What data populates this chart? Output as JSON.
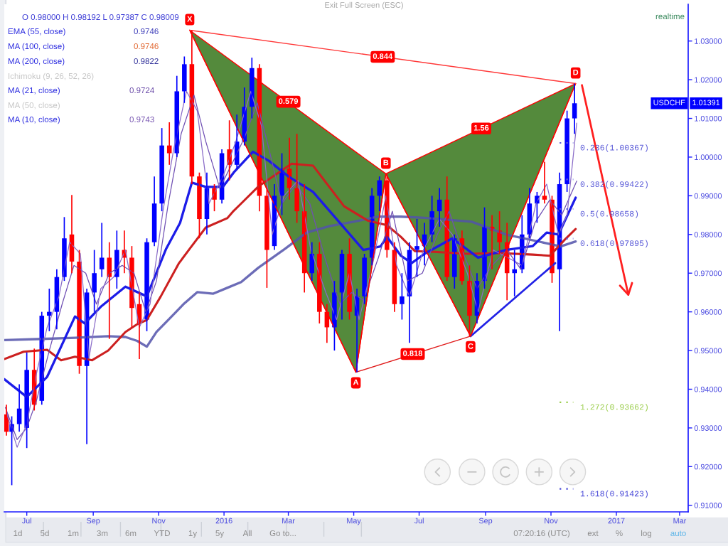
{
  "chart_data": {
    "type": "candlestick",
    "xlim": [
      "2015-06-10",
      "2017-03-09"
    ],
    "ylim": [
      0.9083,
      1.0395
    ],
    "xticks": [
      {
        "value": "2015-07-01",
        "label": "Jul"
      },
      {
        "value": "2015-09-01",
        "label": "Sep"
      },
      {
        "value": "2015-11-01",
        "label": "Nov"
      },
      {
        "value": "2016-01-01",
        "label": "2016"
      },
      {
        "value": "2016-03-01",
        "label": "Mar"
      },
      {
        "value": "2016-05-01",
        "label": "May"
      },
      {
        "value": "2016-07-01",
        "label": "Jul"
      },
      {
        "value": "2016-09-01",
        "label": "Sep"
      },
      {
        "value": "2016-11-01",
        "label": "Nov"
      },
      {
        "value": "2017-01-01",
        "label": "2017"
      },
      {
        "value": "2017-03-01",
        "label": "Mar"
      }
    ],
    "yticks": [
      {
        "value": 0.91,
        "label": "0.91000"
      },
      {
        "value": 0.92,
        "label": "0.92000"
      },
      {
        "value": 0.93,
        "label": "0.93000"
      },
      {
        "value": 0.94,
        "label": "0.94000"
      },
      {
        "value": 0.95,
        "label": "0.95000"
      },
      {
        "value": 0.96,
        "label": "0.96000"
      },
      {
        "value": 0.97,
        "label": "0.97000"
      },
      {
        "value": 0.98,
        "label": "0.98000"
      },
      {
        "value": 0.99,
        "label": "0.99000"
      },
      {
        "value": 1.0,
        "label": "1.00000"
      },
      {
        "value": 1.01,
        "label": "1.01000"
      },
      {
        "value": 1.02,
        "label": "1.02000"
      },
      {
        "value": 1.03,
        "label": "1.03000"
      }
    ],
    "series": [
      {
        "name": "USDCHF",
        "x": [
          "2015-06-12",
          "2015-06-17",
          "2015-06-24",
          "2015-07-01",
          "2015-07-08",
          "2015-07-15",
          "2015-07-22",
          "2015-07-29",
          "2015-08-05",
          "2015-08-12",
          "2015-08-19",
          "2015-08-26",
          "2015-09-02",
          "2015-09-09",
          "2015-09-16",
          "2015-09-23",
          "2015-09-30",
          "2015-10-07",
          "2015-10-14",
          "2015-10-21",
          "2015-10-28",
          "2015-11-04",
          "2015-11-11",
          "2015-11-18",
          "2015-11-25",
          "2015-12-02",
          "2015-12-09",
          "2015-12-16",
          "2015-12-23",
          "2015-12-30",
          "2016-01-06",
          "2016-01-13",
          "2016-01-20",
          "2016-01-27",
          "2016-02-03",
          "2016-02-10",
          "2016-02-17",
          "2016-02-24",
          "2016-03-02",
          "2016-03-09",
          "2016-03-16",
          "2016-03-23",
          "2016-03-30",
          "2016-04-06",
          "2016-04-13",
          "2016-04-20",
          "2016-04-27",
          "2016-05-04",
          "2016-05-11",
          "2016-05-18",
          "2016-05-25",
          "2016-06-01",
          "2016-06-08",
          "2016-06-15",
          "2016-06-22",
          "2016-06-29",
          "2016-07-06",
          "2016-07-13",
          "2016-07-20",
          "2016-07-27",
          "2016-08-03",
          "2016-08-10",
          "2016-08-17",
          "2016-08-24",
          "2016-08-31",
          "2016-09-07",
          "2016-09-14",
          "2016-09-21",
          "2016-09-28",
          "2016-10-05",
          "2016-10-12",
          "2016-10-19",
          "2016-10-26",
          "2016-11-02",
          "2016-11-09",
          "2016-11-16",
          "2016-11-23"
        ],
        "ohlc": [
          [
            0.9335,
            0.936,
            0.928,
            0.929
          ],
          [
            0.929,
            0.933,
            0.9152,
            0.931
          ],
          [
            0.931,
            0.9413,
            0.929,
            0.935
          ],
          [
            0.93,
            0.9495,
            0.9248,
            0.945
          ],
          [
            0.945,
            0.9505,
            0.9345,
            0.936
          ],
          [
            0.937,
            0.96,
            0.936,
            0.959
          ],
          [
            0.959,
            0.966,
            0.955,
            0.96
          ],
          [
            0.96,
            0.971,
            0.9555,
            0.969
          ],
          [
            0.969,
            0.9845,
            0.968,
            0.979
          ],
          [
            0.98,
            0.9902,
            0.97,
            0.973
          ],
          [
            0.973,
            0.976,
            0.944,
            0.946
          ],
          [
            0.946,
            0.966,
            0.9258,
            0.965
          ],
          [
            0.965,
            0.976,
            0.96,
            0.97
          ],
          [
            0.971,
            0.983,
            0.969,
            0.974
          ],
          [
            0.974,
            0.978,
            0.953,
            0.969
          ],
          [
            0.969,
            0.981,
            0.966,
            0.976
          ],
          [
            0.976,
            0.981,
            0.97,
            0.974
          ],
          [
            0.974,
            0.977,
            0.956,
            0.961
          ],
          [
            0.962,
            0.965,
            0.9478,
            0.957
          ],
          [
            0.958,
            0.979,
            0.955,
            0.978
          ],
          [
            0.978,
            0.995,
            0.977,
            0.988
          ],
          [
            0.988,
            1.0075,
            0.986,
            1.003
          ],
          [
            1.003,
            1.009,
            0.998,
            1.001
          ],
          [
            1.001,
            1.021,
            1.0,
            1.017
          ],
          [
            1.017,
            1.026,
            1.014,
            1.024
          ],
          [
            1.024,
            1.0328,
            0.993,
            0.995
          ],
          [
            0.995,
            0.996,
            0.979,
            0.984
          ],
          [
            0.984,
            0.996,
            0.98,
            0.992
          ],
          [
            0.992,
            0.993,
            0.986,
            0.989
          ],
          [
            0.989,
            1.002,
            0.988,
            1.001
          ],
          [
            1.002,
            1.0095,
            0.994,
            0.998
          ],
          [
            0.998,
            1.011,
            0.997,
            1.004
          ],
          [
            1.004,
            1.018,
            1.003,
            1.013
          ],
          [
            1.013,
            1.0257,
            1.01,
            1.023
          ],
          [
            1.023,
            1.024,
            0.986,
            0.99
          ],
          [
            0.99,
            0.992,
            0.9662,
            0.976
          ],
          [
            0.977,
            0.993,
            0.976,
            0.99
          ],
          [
            0.99,
            1.001,
            0.985,
            0.997
          ],
          [
            0.997,
            1.005,
            0.989,
            0.992
          ],
          [
            0.992,
            1.006,
            0.983,
            0.986
          ],
          [
            0.986,
            0.993,
            0.965,
            0.97
          ],
          [
            0.97,
            0.978,
            0.968,
            0.975
          ],
          [
            0.975,
            0.978,
            0.957,
            0.96
          ],
          [
            0.96,
            0.962,
            0.952,
            0.956
          ],
          [
            0.956,
            0.968,
            0.95,
            0.965
          ],
          [
            0.965,
            0.976,
            0.958,
            0.975
          ],
          [
            0.975,
            0.979,
            0.958,
            0.96
          ],
          [
            0.959,
            0.966,
            0.9444,
            0.964
          ],
          [
            0.964,
            0.975,
            0.962,
            0.974
          ],
          [
            0.974,
            0.992,
            0.972,
            0.99
          ],
          [
            0.99,
            0.995,
            0.986,
            0.994
          ],
          [
            0.994,
            0.9957,
            0.974,
            0.976
          ],
          [
            0.976,
            0.978,
            0.96,
            0.962
          ],
          [
            0.962,
            0.97,
            0.958,
            0.964
          ],
          [
            0.964,
            0.978,
            0.952,
            0.976
          ],
          [
            0.976,
            0.984,
            0.969,
            0.977
          ],
          [
            0.977,
            0.983,
            0.972,
            0.98
          ],
          [
            0.98,
            0.99,
            0.978,
            0.986
          ],
          [
            0.986,
            0.992,
            0.982,
            0.989
          ],
          [
            0.989,
            0.995,
            0.968,
            0.969
          ],
          [
            0.969,
            0.98,
            0.966,
            0.979
          ],
          [
            0.979,
            0.981,
            0.967,
            0.968
          ],
          [
            0.968,
            0.972,
            0.9537,
            0.959
          ],
          [
            0.959,
            0.97,
            0.957,
            0.968
          ],
          [
            0.968,
            0.987,
            0.966,
            0.982
          ],
          [
            0.982,
            0.985,
            0.971,
            0.981
          ],
          [
            0.981,
            0.986,
            0.975,
            0.978
          ],
          [
            0.978,
            0.983,
            0.963,
            0.97
          ],
          [
            0.97,
            0.976,
            0.964,
            0.971
          ],
          [
            0.971,
            0.985,
            0.97,
            0.98
          ],
          [
            0.98,
            0.992,
            0.979,
            0.988
          ],
          [
            0.988,
            0.991,
            0.983,
            0.99
          ],
          [
            0.99,
            0.9988,
            0.988,
            0.989
          ],
          [
            0.989,
            0.99,
            0.9675,
            0.97
          ],
          [
            0.971,
            0.996,
            0.955,
            0.993
          ],
          [
            0.993,
            1.012,
            0.991,
            1.01
          ],
          [
            1.01,
            1.019,
            1.006,
            1.01391
          ]
        ],
        "colors": [
          "#ff0000",
          "#0000ff",
          "#0000ff",
          "#0000ff",
          "#ff0000",
          "#0000ff",
          "#0000ff",
          "#0000ff",
          "#0000ff",
          "#ff0000",
          "#ff0000",
          "#0000ff",
          "#0000ff",
          "#0000ff",
          "#ff0000",
          "#0000ff",
          "#ff0000",
          "#ff0000",
          "#ff0000",
          "#0000ff",
          "#0000ff",
          "#0000ff",
          "#ff0000",
          "#0000ff",
          "#0000ff",
          "#ff0000",
          "#ff0000",
          "#0000ff",
          "#ff0000",
          "#0000ff",
          "#ff0000",
          "#0000ff",
          "#0000ff",
          "#0000ff",
          "#ff0000",
          "#ff0000",
          "#0000ff",
          "#0000ff",
          "#ff0000",
          "#ff0000",
          "#ff0000",
          "#0000ff",
          "#ff0000",
          "#ff0000",
          "#0000ff",
          "#0000ff",
          "#ff0000",
          "#0000ff",
          "#0000ff",
          "#0000ff",
          "#0000ff",
          "#ff0000",
          "#ff0000",
          "#0000ff",
          "#0000ff",
          "#0000ff",
          "#0000ff",
          "#0000ff",
          "#0000ff",
          "#ff0000",
          "#0000ff",
          "#ff0000",
          "#ff0000",
          "#0000ff",
          "#0000ff",
          "#ff0000",
          "#ff0000",
          "#ff0000",
          "#0000ff",
          "#0000ff",
          "#0000ff",
          "#0000ff",
          "#ff0000",
          "#ff0000",
          "#0000ff",
          "#0000ff",
          "#0000ff"
        ],
        "value_labels": [
          null,
          null,
          null,
          null,
          null,
          null,
          null,
          null,
          null,
          null,
          null,
          null,
          null,
          null,
          null,
          null,
          null,
          null,
          null,
          null,
          null,
          null,
          null,
          null,
          null,
          null,
          null,
          null,
          null,
          null,
          null,
          null,
          null,
          null,
          null,
          null,
          null,
          null,
          null,
          null,
          null,
          null,
          null,
          null,
          null,
          null,
          null,
          null,
          null,
          null,
          null,
          null,
          null,
          null,
          null,
          null,
          null,
          null,
          null,
          null,
          null,
          null,
          null,
          null,
          null,
          null,
          null,
          null,
          null,
          null,
          null,
          null,
          null,
          null,
          null,
          null,
          "1.01391"
        ]
      },
      {
        "type": "line",
        "color": "#5252aa",
        "x": [
          "2015-06-10",
          "2015-07-15",
          "2015-08-15",
          "2015-09-15",
          "2015-10-01",
          "2015-10-12",
          "2015-10-21",
          "2015-10-30",
          "2015-11-12",
          "2015-11-25",
          "2015-12-07",
          "2015-12-22",
          "2016-01-04",
          "2016-01-17",
          "2016-02-02",
          "2016-02-27",
          "2016-03-18",
          "2016-04-09",
          "2016-05-01",
          "2016-05-23",
          "2016-06-14",
          "2016-07-06",
          "2016-08-19",
          "2016-09-20",
          "2016-10-30",
          "2016-11-10",
          "2016-11-24"
        ],
        "values": [
          0.9527,
          0.953,
          0.9533,
          0.9537,
          0.9535,
          0.9525,
          0.951,
          0.9548,
          0.9585,
          0.9622,
          0.9651,
          0.9647,
          0.9662,
          0.9677,
          0.9714,
          0.9763,
          0.9805,
          0.9822,
          0.9833,
          0.9846,
          0.9846,
          0.9843,
          0.9833,
          0.98,
          0.9776,
          0.9769,
          0.9782
        ]
      },
      {
        "type": "line",
        "color": "#cc2020",
        "x": [
          "2015-06-10",
          "2015-06-28",
          "2015-07-20",
          "2015-08-02",
          "2015-08-15",
          "2015-08-31",
          "2015-09-15",
          "2015-10-01",
          "2015-10-12",
          "2015-10-21",
          "2015-11-03",
          "2015-11-20",
          "2015-11-30",
          "2015-12-15",
          "2016-01-04",
          "2016-01-10",
          "2016-01-17",
          "2016-02-02",
          "2016-03-04",
          "2016-03-24",
          "2016-04-22",
          "2016-05-14",
          "2016-06-01",
          "2016-06-14",
          "2016-06-27",
          "2016-07-15",
          "2016-08-15",
          "2016-09-15",
          "2016-10-15",
          "2016-10-31",
          "2016-11-14",
          "2016-11-24"
        ],
        "values": [
          0.9478,
          0.9497,
          0.9502,
          0.9475,
          0.9484,
          0.9475,
          0.95,
          0.9548,
          0.9568,
          0.9579,
          0.964,
          0.9726,
          0.9763,
          0.9818,
          0.9842,
          0.9861,
          0.988,
          0.9924,
          0.9983,
          0.9978,
          0.9873,
          0.9836,
          0.9824,
          0.9794,
          0.9757,
          0.9755,
          0.975,
          0.9752,
          0.9748,
          0.9745,
          0.9787,
          0.9814
        ]
      },
      {
        "type": "line",
        "color": "#1c1ce8",
        "x": [
          "2015-06-10",
          "2015-07-01",
          "2015-07-20",
          "2015-08-15",
          "2015-08-24",
          "2015-09-08",
          "2015-10-01",
          "2015-10-21",
          "2015-11-08",
          "2015-11-21",
          "2015-12-02",
          "2015-12-15",
          "2015-12-31",
          "2016-01-10",
          "2016-01-28",
          "2016-02-12",
          "2016-03-01",
          "2016-03-24",
          "2016-04-15",
          "2016-05-10",
          "2016-05-26",
          "2016-06-01",
          "2016-06-14",
          "2016-06-24",
          "2016-07-06",
          "2016-08-01",
          "2016-08-25",
          "2016-09-20",
          "2016-10-15",
          "2016-10-28",
          "2016-11-08",
          "2016-11-24"
        ],
        "values": [
          0.9426,
          0.938,
          0.9432,
          0.9588,
          0.957,
          0.9613,
          0.9665,
          0.964,
          0.9763,
          0.983,
          0.9934,
          0.9923,
          0.9923,
          0.996,
          1.0014,
          0.999,
          0.995,
          0.991,
          0.984,
          0.976,
          0.9769,
          0.9794,
          0.9745,
          0.9726,
          0.975,
          0.979,
          0.974,
          0.976,
          0.977,
          0.9805,
          0.98,
          0.9895
        ]
      },
      {
        "type": "line",
        "color": "#7050b4",
        "x": [
          "2015-06-11",
          "2015-06-22",
          "2015-07-01",
          "2015-07-10",
          "2015-07-22",
          "2015-08-03",
          "2015-08-14",
          "2015-08-25",
          "2015-09-04",
          "2015-09-16",
          "2015-09-28",
          "2015-10-09",
          "2015-10-20",
          "2015-10-30",
          "2015-11-10",
          "2015-11-22",
          "2015-12-04",
          "2015-12-15",
          "2015-12-28",
          "2016-01-08",
          "2016-01-20",
          "2016-02-01",
          "2016-02-12",
          "2016-02-24",
          "2016-03-08",
          "2016-03-21",
          "2016-04-04",
          "2016-04-18",
          "2016-04-29",
          "2016-05-10",
          "2016-05-24",
          "2016-06-06",
          "2016-06-20",
          "2016-07-04",
          "2016-07-18",
          "2016-07-29",
          "2016-08-10",
          "2016-08-24",
          "2016-09-07",
          "2016-09-21",
          "2016-10-04",
          "2016-10-17",
          "2016-10-31",
          "2016-11-11",
          "2016-11-25"
        ],
        "values": [
          0.9353,
          0.927,
          0.93,
          0.937,
          0.95,
          0.962,
          0.972,
          0.97,
          0.962,
          0.97,
          0.972,
          0.97,
          0.96,
          0.968,
          0.988,
          1.006,
          1.016,
          1.004,
          0.992,
          0.998,
          1.005,
          1.014,
          1.002,
          0.988,
          0.993,
          0.988,
          0.974,
          0.962,
          0.965,
          0.963,
          0.974,
          0.986,
          0.968,
          0.97,
          0.98,
          0.986,
          0.976,
          0.966,
          0.972,
          0.976,
          0.971,
          0.983,
          0.989,
          0.985,
          0.9938
        ]
      },
      {
        "type": "line",
        "color": "#8a6cc8",
        "x": [
          "2015-06-12",
          "2015-06-22",
          "2015-07-01",
          "2015-07-10",
          "2015-07-20",
          "2015-07-31",
          "2015-08-10",
          "2015-08-20",
          "2015-08-28",
          "2015-09-08",
          "2015-09-20",
          "2015-10-01",
          "2015-10-14",
          "2015-10-24",
          "2015-11-05",
          "2015-11-15",
          "2015-11-27",
          "2015-12-07",
          "2015-12-18",
          "2015-12-31",
          "2016-01-12",
          "2016-01-26",
          "2016-02-05",
          "2016-02-15",
          "2016-02-26",
          "2016-03-10",
          "2016-03-22",
          "2016-04-05",
          "2016-04-15",
          "2016-04-27",
          "2016-05-06",
          "2016-05-20",
          "2016-05-31",
          "2016-06-10",
          "2016-06-22",
          "2016-07-05",
          "2016-07-20",
          "2016-08-01",
          "2016-08-15",
          "2016-08-25",
          "2016-09-08",
          "2016-09-22",
          "2016-10-05",
          "2016-10-18",
          "2016-10-28",
          "2016-11-08",
          "2016-11-16",
          "2016-11-25"
        ],
        "values": [
          0.934,
          0.925,
          0.931,
          0.944,
          0.956,
          0.964,
          0.978,
          0.975,
          0.948,
          0.966,
          0.969,
          0.976,
          0.956,
          0.962,
          0.986,
          1.002,
          1.017,
          1.012,
          0.988,
          0.995,
          1.004,
          1.017,
          1.008,
          0.98,
          0.99,
          0.994,
          0.976,
          0.965,
          0.958,
          0.97,
          0.958,
          0.974,
          0.99,
          0.972,
          0.964,
          0.976,
          0.984,
          0.98,
          0.97,
          0.96,
          0.976,
          0.974,
          0.972,
          0.988,
          0.993,
          0.98,
          0.985,
          1.0088
        ]
      },
      {
        "type": "line",
        "color": "#2222e6",
        "x": [
          "2016-08-18",
          "2016-11-05"
        ],
        "values": [
          0.9537,
          0.9726
        ]
      },
      {
        "type": "line",
        "color": "#ff0000",
        "x": [
          "2015-11-30",
          "2016-05-03",
          "2016-05-31",
          "2016-08-18",
          "2016-11-24"
        ],
        "values": [
          1.0328,
          0.9444,
          0.9957,
          0.9537,
          1.019
        ],
        "lower": [
          1.0328,
          0.9444,
          0.9957,
          0.9537,
          1.019
        ],
        "upper": [
          1.0328,
          1.0013,
          0.9957,
          1.0061,
          1.019
        ],
        "value_labels": [
          "X",
          "A",
          "B",
          "C",
          "D"
        ]
      },
      {
        "type": "line",
        "color": "#ff3838",
        "x": [
          "2015-11-30",
          "2016-11-24"
        ],
        "values": [
          1.0328,
          1.019
        ]
      },
      {
        "type": "line",
        "color": "#e01a1a",
        "x": [
          "2016-05-03",
          "2016-08-18"
        ],
        "values": [
          0.9444,
          0.9537
        ]
      }
    ],
    "ref_lines": [
      {
        "axis": "y",
        "value": 1.00367,
        "label": "0.236(1.00367)",
        "color": "#5a5ad8",
        "line_style": "dotted"
      },
      {
        "axis": "y",
        "value": 0.99422,
        "label": "0.382(0.99422)",
        "color": "#5a5ad8",
        "line_style": "dotted"
      },
      {
        "axis": "y",
        "value": 0.98658,
        "label": "0.5(0.98658)",
        "color": "#5a5ad8",
        "line_style": "dotted"
      },
      {
        "axis": "y",
        "value": 0.97895,
        "label": "0.618(0.97895)",
        "color": "#5a5ad8",
        "line_style": "dotted"
      },
      {
        "axis": "y",
        "value": 0.93662,
        "label": "1.272(0.93662)",
        "color": "#9acd4b",
        "line_style": "dotted"
      },
      {
        "axis": "y",
        "value": 0.91423,
        "label": "1.618(0.91423)",
        "color": "#4848d8",
        "line_style": "dotted"
      }
    ],
    "annotations": [
      "O 0.98000 H 0.98192 L 0.97387 C 0.98009",
      "EMA (55, close)",
      "0.9746",
      "MA (100, close)",
      "0.9746",
      "MA (200, close)",
      "0.9822",
      "Ichimoku (9, 26, 52, 26)",
      "MA (21, close)",
      "0.9724",
      "MA (50, close)",
      "MA (10, close)",
      "0.9743",
      "Exit Full Screen (ESC)",
      "realtime",
      "1d",
      "5d",
      "1m",
      "3m",
      "6m",
      "YTD",
      "1y",
      "5y",
      "All",
      "Go to...",
      "07:20:16 (UTC)",
      "ext",
      "%",
      "log",
      "auto",
      {
        "text": "0.844",
        "x": "2016-05-28",
        "y": 1.0259
      },
      {
        "text": "0.579",
        "x": "2016-03-01",
        "y": 1.0143
      },
      {
        "text": "1.56",
        "x": "2016-08-28",
        "y": 1.0074
      },
      {
        "text": "0.818",
        "x": "2016-06-25",
        "y": 0.9491
      }
    ]
  }
}
